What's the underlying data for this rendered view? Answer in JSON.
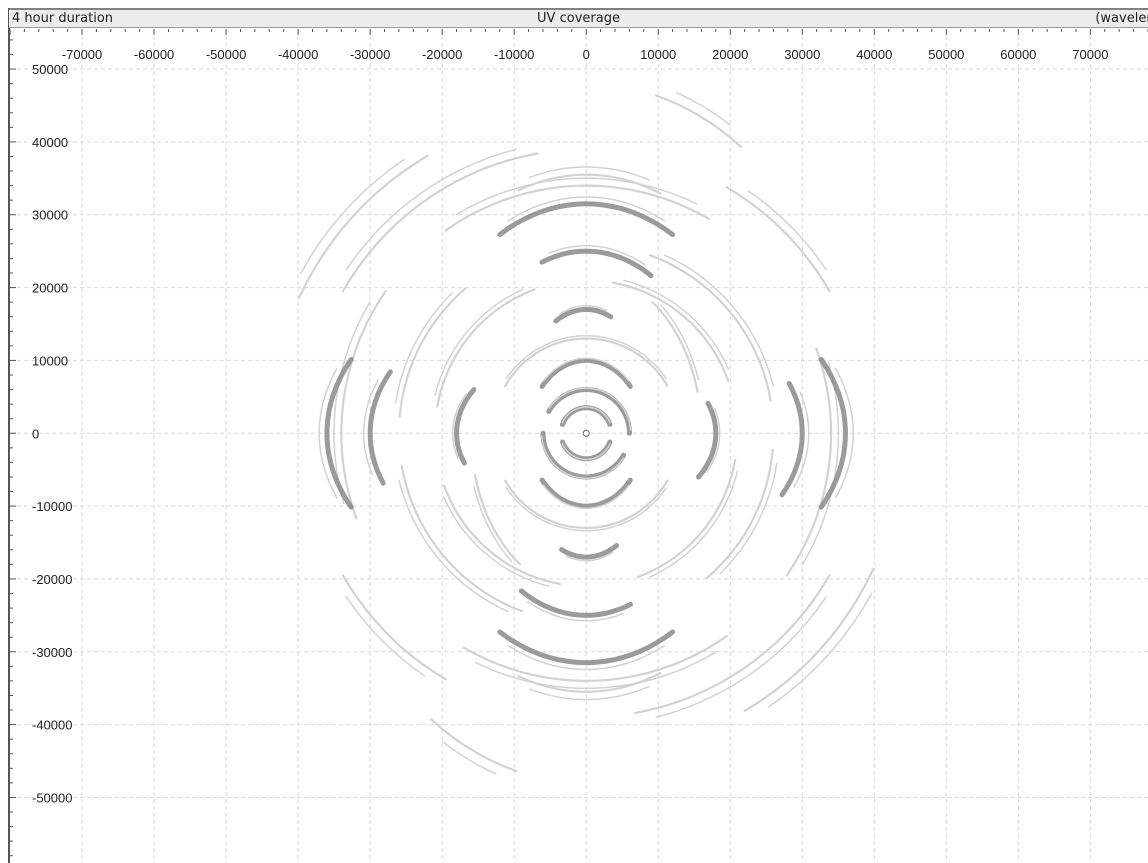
{
  "header": {
    "left": "4 hour duration",
    "center": "UV coverage",
    "right": "(wavelengths)"
  },
  "chart_data": {
    "type": "scatter",
    "title": "UV coverage",
    "subtitle": "4 hour duration",
    "units": "(wavelengths)",
    "x_ticks": [
      -70000,
      -60000,
      -50000,
      -40000,
      -30000,
      -20000,
      -10000,
      0,
      10000,
      20000,
      30000,
      40000,
      50000,
      60000,
      70000
    ],
    "x_tick_labels": [
      "-70000",
      "-60000",
      "-50000",
      "-40000",
      "-30000",
      "-20000",
      "-10000",
      "0",
      "10000",
      "20000",
      "30000",
      "40000",
      "50000",
      "60000",
      "70000"
    ],
    "y_ticks": [
      50000,
      40000,
      30000,
      20000,
      10000,
      0,
      -10000,
      -20000,
      -30000,
      -40000,
      -50000
    ],
    "y_tick_labels": [
      "50000",
      "40000",
      "30000",
      "20000",
      "10000",
      "0",
      "-10000",
      "-20000",
      "-30000",
      "-40000",
      "-50000"
    ],
    "xlim": [
      -80000,
      78000
    ],
    "ylim": [
      -59000,
      55500
    ],
    "grid": true,
    "colors": {
      "light_track": "#d2d2d2",
      "dark_track": "#8a8a8a",
      "grid": "#d9d9d9",
      "axis": "#555555"
    },
    "tracks": [
      {
        "rx": 27500,
        "ry": 35500,
        "arcs": [
          [
            68,
            110
          ],
          [
            250,
            292
          ]
        ],
        "shade": "light"
      },
      {
        "rx": 37500,
        "ry": 48000,
        "arcs": [
          [
            55,
            75
          ],
          [
            235,
            255
          ]
        ],
        "shade": "light"
      },
      {
        "rx": 24000,
        "ry": 31500,
        "arcs": [
          [
            60,
            120
          ],
          [
            240,
            300
          ]
        ],
        "shade": "dark"
      },
      {
        "rx": 18000,
        "ry": 25000,
        "arcs": [
          [
            60,
            110
          ],
          [
            240,
            290
          ]
        ],
        "shade": "dark"
      },
      {
        "rx": 34000,
        "ry": 34000,
        "arcs": [
          [
            60,
            125
          ],
          [
            240,
            305
          ],
          [
            145,
            200
          ],
          [
            325,
            380
          ]
        ],
        "shade": "light"
      },
      {
        "rx": 39000,
        "ry": 39000,
        "arcs": [
          [
            30,
            60
          ],
          [
            100,
            150
          ],
          [
            210,
            240
          ],
          [
            280,
            330
          ]
        ],
        "shade": "light"
      },
      {
        "rx": 36000,
        "ry": 24000,
        "arcs": [
          [
            155,
            205
          ],
          [
            335,
            385
          ]
        ],
        "shade": "dark"
      },
      {
        "rx": 30000,
        "ry": 20000,
        "arcs": [
          [
            155,
            200
          ],
          [
            335,
            380
          ]
        ],
        "shade": "dark"
      },
      {
        "rx": 18000,
        "ry": 12000,
        "arcs": [
          [
            150,
            200
          ],
          [
            330,
            380
          ]
        ],
        "shade": "dark"
      },
      {
        "rx": 10000,
        "ry": 17000,
        "arcs": [
          [
            70,
            115
          ],
          [
            250,
            295
          ]
        ],
        "shade": "dark"
      },
      {
        "rx": 13000,
        "ry": 13000,
        "arcs": [
          [
            30,
            150
          ],
          [
            210,
            330
          ]
        ],
        "shade": "light"
      },
      {
        "rx": 8000,
        "ry": 10000,
        "arcs": [
          [
            40,
            140
          ],
          [
            220,
            320
          ]
        ],
        "shade": "dark"
      },
      {
        "rx": 6000,
        "ry": 6000,
        "arcs": [
          [
            0,
            150
          ],
          [
            180,
            330
          ]
        ],
        "shade": "dark"
      },
      {
        "rx": 3500,
        "ry": 3500,
        "arcs": [
          [
            20,
            160
          ],
          [
            200,
            340
          ]
        ],
        "shade": "dark"
      },
      {
        "rx": 21000,
        "ry": 21000,
        "arcs": [
          [
            20,
            80
          ],
          [
            110,
            170
          ],
          [
            200,
            260
          ],
          [
            290,
            350
          ]
        ],
        "shade": "light"
      },
      {
        "rx": 26000,
        "ry": 26000,
        "arcs": [
          [
            10,
            70
          ],
          [
            130,
            175
          ],
          [
            190,
            250
          ],
          [
            310,
            355
          ]
        ],
        "shade": "light"
      },
      {
        "rx": 44000,
        "ry": 44000,
        "arcs": [
          [
            120,
            155
          ],
          [
            300,
            335
          ]
        ],
        "shade": "light"
      },
      {
        "rx": 16000,
        "ry": 22000,
        "arcs": [
          [
            15,
            55
          ],
          [
            195,
            235
          ]
        ],
        "shade": "light"
      }
    ]
  }
}
